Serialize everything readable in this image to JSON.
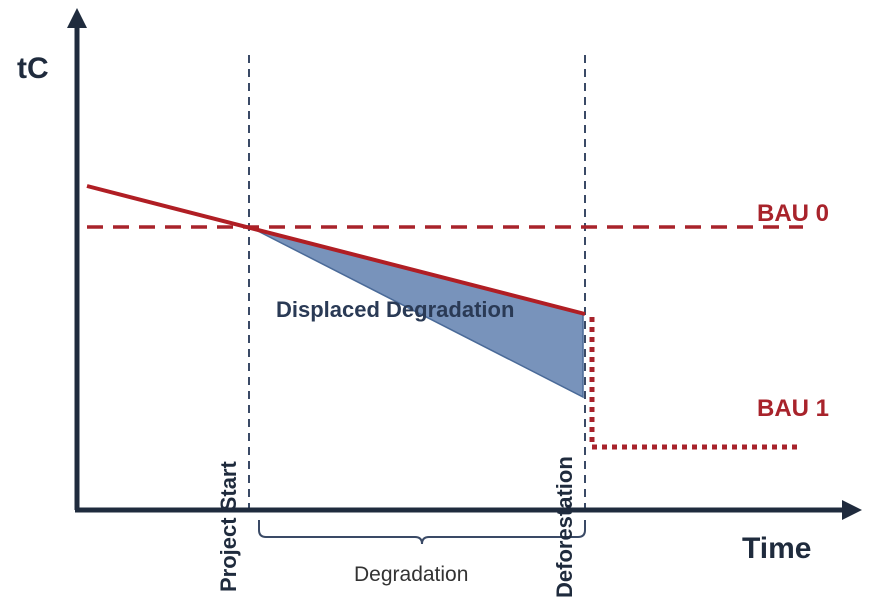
{
  "labels": {
    "y_axis": "tC",
    "x_axis": "Time",
    "bau0": "BAU 0",
    "bau1": "BAU 1",
    "project_start": "Project Start",
    "deforestation": "Deforestation",
    "displaced_degradation": "Displaced Degradation",
    "degradation_period": "Degradation"
  },
  "colors": {
    "axis": "#1f2b3d",
    "event_line": "#3a4a66",
    "with_project": "#b01e24",
    "bau": "#a8232b",
    "area_fill": "#7893bb",
    "area_stroke": "#4a6a98"
  }
}
